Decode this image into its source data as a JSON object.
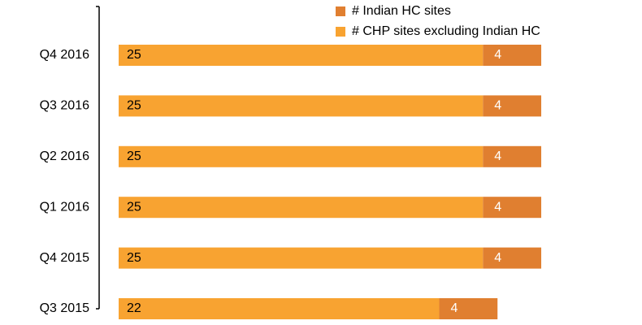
{
  "chart_data": {
    "type": "stacked-barh",
    "categories": [
      "Q4 2016",
      "Q3 2016",
      "Q2 2016",
      "Q1 2016",
      "Q4 2015",
      "Q3 2015"
    ],
    "series": [
      {
        "name": "# CHP sites excluding Indian HC",
        "color": "#f8a331",
        "values": [
          25,
          25,
          25,
          25,
          25,
          22
        ]
      },
      {
        "name": "# Indian HC sites",
        "color": "#e07f30",
        "values": [
          4,
          4,
          4,
          4,
          4,
          4
        ]
      }
    ],
    "legend": "top-right"
  }
}
